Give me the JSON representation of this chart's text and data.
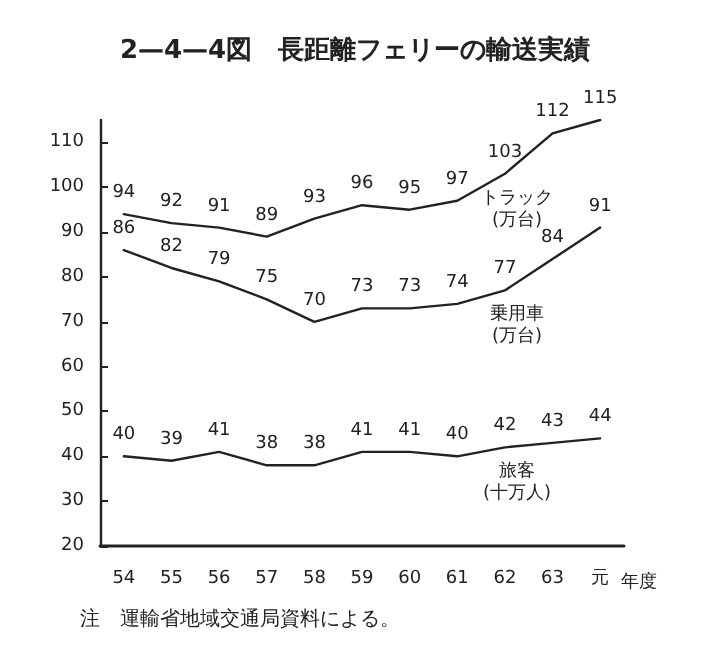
{
  "chart_data": {
    "type": "line",
    "title": "2—4—4図　長距離フェリーの輸送実績",
    "xlabel": "年度",
    "annotations": [
      "注　運輸省地域交通局資料による。"
    ],
    "categories": [
      "54",
      "55",
      "56",
      "57",
      "58",
      "59",
      "60",
      "61",
      "62",
      "63",
      "元"
    ],
    "series": [
      {
        "name": "トラック\n(万台)",
        "color": "#222222",
        "values": [
          94,
          92,
          91,
          89,
          93,
          96,
          95,
          97,
          103,
          112,
          115
        ]
      },
      {
        "name": "乗用車\n(万台)",
        "color": "#222222",
        "values": [
          86,
          82,
          79,
          75,
          70,
          73,
          73,
          74,
          77,
          84,
          91
        ]
      },
      {
        "name": "旅客\n(十万人)",
        "color": "#222222",
        "values": [
          40,
          39,
          41,
          38,
          38,
          41,
          41,
          40,
          42,
          43,
          44
        ]
      }
    ],
    "ylim": [
      20,
      115
    ],
    "yticks": [
      20,
      30,
      40,
      50,
      60,
      70,
      80,
      90,
      100,
      110
    ],
    "grid": false,
    "legend": false,
    "marker": "none",
    "line_style": "solid",
    "data_labels": true
  }
}
